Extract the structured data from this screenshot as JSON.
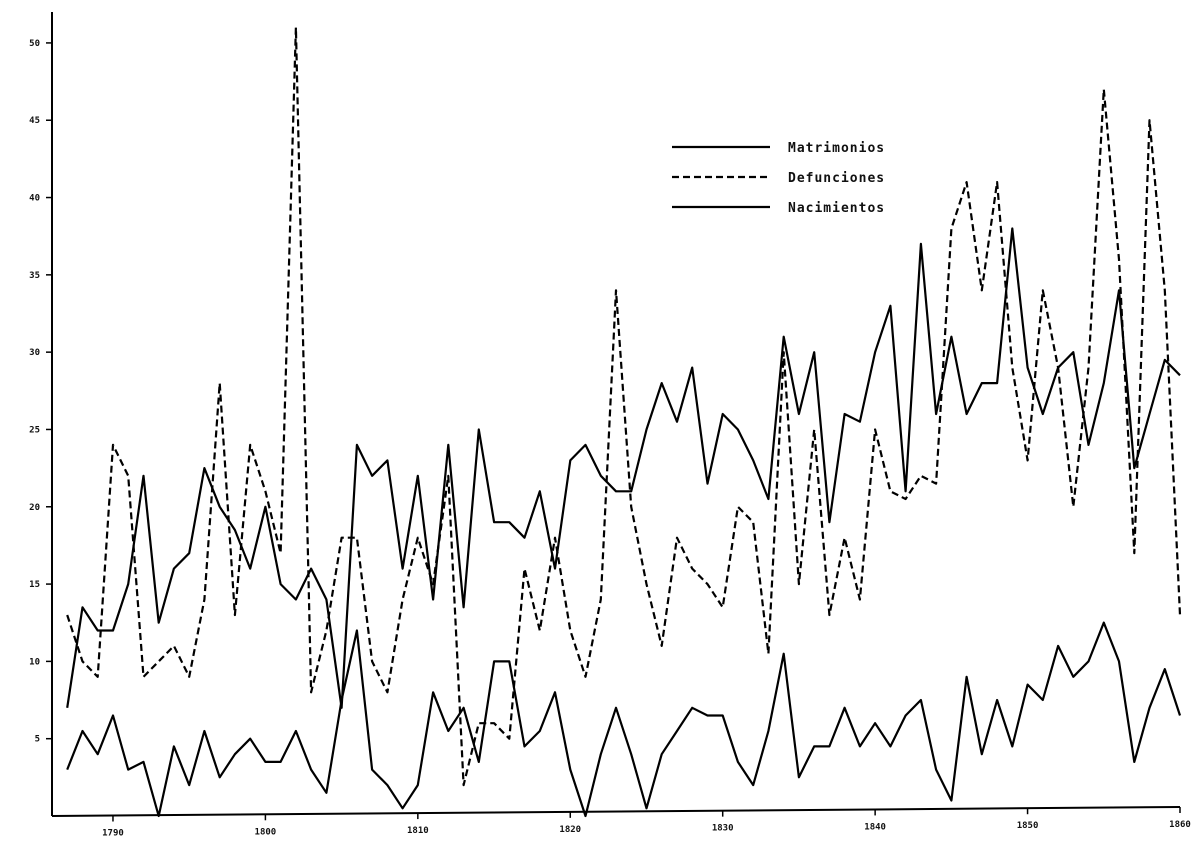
{
  "chart_data": {
    "type": "line",
    "title": "",
    "xlabel": "",
    "ylabel": "",
    "xlim": [
      1786,
      1860
    ],
    "ylim": [
      0,
      52
    ],
    "grid": false,
    "legend_placement": "top-right",
    "x_ticks": [
      1790,
      1800,
      1810,
      1820,
      1830,
      1840,
      1850,
      1860
    ],
    "x_tick_labels": [
      "1790",
      "1800",
      "1810",
      "1820",
      "1830",
      "1840",
      "1850",
      "1860"
    ],
    "y_ticks": [
      5,
      10,
      15,
      20,
      25,
      30,
      35,
      40,
      45,
      50
    ],
    "y_tick_labels": [
      "5",
      "10",
      "15",
      "20",
      "25",
      "30",
      "35",
      "40",
      "45",
      "50"
    ],
    "series": [
      {
        "name": "Matrimonios",
        "style": "solid",
        "x": [
          1787,
          1788,
          1789,
          1790,
          1791,
          1792,
          1793,
          1794,
          1795,
          1796,
          1797,
          1798,
          1799,
          1800,
          1801,
          1802,
          1803,
          1804,
          1805,
          1806,
          1807,
          1808,
          1809,
          1810,
          1811,
          1812,
          1813,
          1814,
          1815,
          1816,
          1817,
          1818,
          1819,
          1820,
          1821,
          1822,
          1823,
          1824,
          1825,
          1826,
          1827,
          1828,
          1829,
          1830,
          1831,
          1832,
          1833,
          1834,
          1835,
          1836,
          1837,
          1838,
          1839,
          1840,
          1841,
          1842,
          1843,
          1844,
          1845,
          1846,
          1847,
          1848,
          1849,
          1850,
          1851,
          1852,
          1853,
          1854,
          1855,
          1856,
          1857,
          1858,
          1859,
          1860
        ],
        "values": [
          3,
          5.5,
          4,
          6.5,
          3,
          3.5,
          0,
          4.5,
          2,
          5.5,
          2.5,
          4,
          5,
          3.5,
          3.5,
          5.5,
          3,
          1.5,
          7.5,
          12,
          3,
          2,
          0.5,
          2,
          8,
          5.5,
          7,
          3.5,
          10,
          10,
          4.5,
          5.5,
          8,
          3,
          0,
          4,
          7,
          4,
          0.5,
          4,
          5.5,
          7,
          6.5,
          6.5,
          3.5,
          2,
          5.5,
          10.5,
          2.5,
          4.5,
          4.5,
          7,
          4.5,
          6,
          4.5,
          6.5,
          7.5,
          3,
          1,
          9,
          4,
          7.5,
          4.5,
          8.5,
          7.5,
          11,
          9,
          10,
          12.5,
          10,
          3.5,
          7,
          9.5,
          6.5
        ]
      },
      {
        "name": "Defunciones",
        "style": "dashed",
        "x": [
          1787,
          1788,
          1789,
          1790,
          1791,
          1792,
          1793,
          1794,
          1795,
          1796,
          1797,
          1798,
          1799,
          1800,
          1801,
          1802,
          1803,
          1804,
          1805,
          1806,
          1807,
          1808,
          1809,
          1810,
          1811,
          1812,
          1813,
          1814,
          1815,
          1816,
          1817,
          1818,
          1819,
          1820,
          1821,
          1822,
          1823,
          1824,
          1825,
          1826,
          1827,
          1828,
          1829,
          1830,
          1831,
          1832,
          1833,
          1834,
          1835,
          1836,
          1837,
          1838,
          1839,
          1840,
          1841,
          1842,
          1843,
          1844,
          1845,
          1846,
          1847,
          1848,
          1849,
          1850,
          1851,
          1852,
          1853,
          1854,
          1855,
          1856,
          1857,
          1858,
          1859,
          1860
        ],
        "values": [
          13,
          10,
          9,
          24,
          22,
          9,
          10,
          11,
          9,
          14,
          28,
          13,
          24,
          21,
          17,
          51,
          8,
          12,
          18,
          18,
          10,
          8,
          14,
          18,
          15,
          22,
          2,
          6,
          6,
          5,
          16,
          12,
          18,
          12,
          9,
          14,
          34,
          20,
          15,
          11,
          18,
          16,
          15,
          13.5,
          20,
          19,
          10.5,
          30,
          15,
          25,
          13,
          18,
          14,
          25,
          21,
          20.5,
          22,
          21.5,
          38,
          41,
          34,
          41,
          29,
          23,
          34,
          29,
          20,
          29,
          47,
          36,
          17,
          45,
          34,
          13
        ]
      },
      {
        "name": "Nacimientos",
        "style": "solid",
        "x": [
          1787,
          1788,
          1789,
          1790,
          1791,
          1792,
          1793,
          1794,
          1795,
          1796,
          1797,
          1798,
          1799,
          1800,
          1801,
          1802,
          1803,
          1804,
          1805,
          1806,
          1807,
          1808,
          1809,
          1810,
          1811,
          1812,
          1813,
          1814,
          1815,
          1816,
          1817,
          1818,
          1819,
          1820,
          1821,
          1822,
          1823,
          1824,
          1825,
          1826,
          1827,
          1828,
          1829,
          1830,
          1831,
          1832,
          1833,
          1834,
          1835,
          1836,
          1837,
          1838,
          1839,
          1840,
          1841,
          1842,
          1843,
          1844,
          1845,
          1846,
          1847,
          1848,
          1849,
          1850,
          1851,
          1852,
          1853,
          1854,
          1855,
          1856,
          1857,
          1858,
          1859,
          1860
        ],
        "values": [
          7,
          13.5,
          12,
          12,
          15,
          22,
          12.5,
          16,
          17,
          22.5,
          20,
          18.5,
          16,
          20,
          15,
          14,
          16,
          14,
          7,
          24,
          22,
          23,
          16,
          22,
          14,
          24,
          13.5,
          25,
          19,
          19,
          18,
          21,
          16,
          23,
          24,
          22,
          21,
          21,
          25,
          28,
          25.5,
          29,
          21.5,
          26,
          25,
          23,
          20.5,
          31,
          26,
          30,
          19,
          26,
          25.5,
          30,
          33,
          21,
          37,
          26,
          31,
          26,
          28,
          28,
          38,
          29,
          26,
          29,
          30,
          24,
          28,
          34,
          22.5,
          26,
          29.5,
          28.5
        ]
      }
    ]
  }
}
